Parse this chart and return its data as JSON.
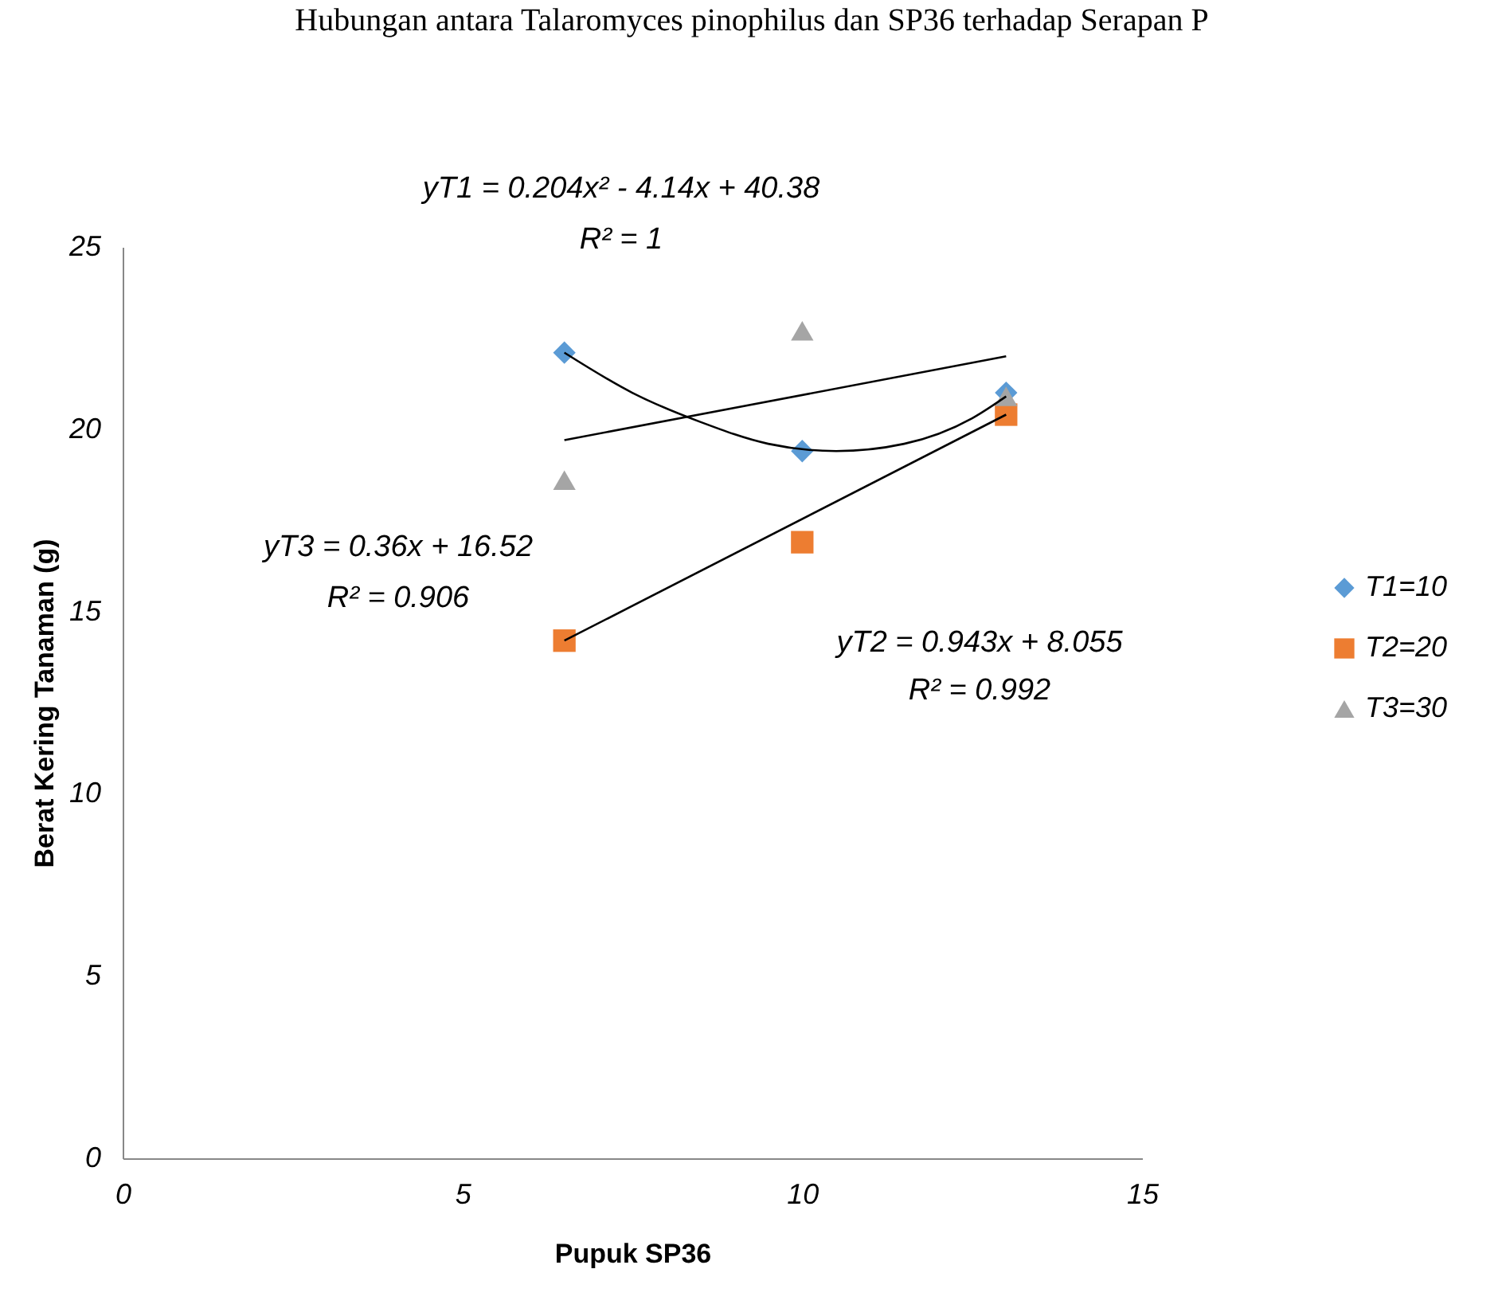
{
  "chart_data": {
    "type": "scatter",
    "title": "Hubungan antara Talaromyces pinophilus dan SP36 terhadap Serapan P",
    "xlabel": "Pupuk SP36",
    "ylabel": "Berat Kering Tanaman (g)",
    "xlim": [
      0,
      15
    ],
    "xticks": [
      0,
      5,
      10,
      15
    ],
    "ylim": [
      0,
      25
    ],
    "yticks": [
      0,
      5,
      10,
      15,
      20,
      25
    ],
    "grid": false,
    "legend": "right",
    "series": [
      {
        "name": "T1=10",
        "marker": "diamond",
        "color": "#5b9bd5",
        "x": [
          6.5,
          10,
          13
        ],
        "values": [
          22.1,
          19.4,
          21.0
        ]
      },
      {
        "name": "T2=20",
        "marker": "square",
        "color": "#ed7d31",
        "x": [
          6.5,
          10,
          13
        ],
        "values": [
          14.2,
          16.9,
          20.4
        ]
      },
      {
        "name": "T3=30",
        "marker": "triangle",
        "color": "#a5a5a5",
        "x": [
          6.5,
          10,
          13
        ],
        "values": [
          18.6,
          22.7,
          20.9
        ]
      },
      {
        "type": "line",
        "color": "#000000",
        "x": [
          6.5,
          7.5,
          8.5,
          9.5,
          10.5,
          11.5,
          12.5,
          13
        ],
        "values": [
          22.1,
          21.0,
          20.2,
          19.6,
          19.4,
          19.6,
          20.3,
          20.9
        ]
      },
      {
        "type": "line",
        "color": "#000000",
        "x": [
          6.5,
          13
        ],
        "values": [
          14.2,
          20.4
        ]
      },
      {
        "type": "line",
        "color": "#000000",
        "x": [
          6.5,
          13
        ],
        "values": [
          19.7,
          22.0
        ]
      }
    ],
    "annotations": [
      "yT1 = 0.204x² - 4.14x + 40.38",
      "R² = 1",
      "yT3 = 0.36x + 16.52",
      "R² = 0.906",
      "yT2 = 0.943x + 8.055",
      "R² = 0.992"
    ]
  }
}
